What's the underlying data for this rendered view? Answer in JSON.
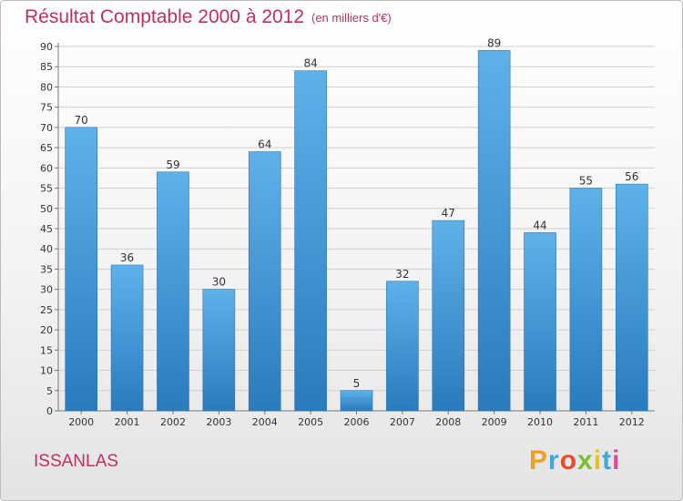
{
  "chart_data": {
    "type": "bar",
    "title": "Résultat Comptable 2000 à 2012",
    "subtitle": "(en milliers d'€)",
    "categories": [
      "2000",
      "2001",
      "2002",
      "2003",
      "2004",
      "2005",
      "2006",
      "2007",
      "2008",
      "2009",
      "2010",
      "2011",
      "2012"
    ],
    "values": [
      70,
      36,
      59,
      30,
      64,
      84,
      5,
      32,
      47,
      89,
      44,
      55,
      56
    ],
    "ylim": [
      0,
      90
    ],
    "yticks": [
      0,
      5,
      10,
      15,
      20,
      25,
      30,
      35,
      40,
      45,
      50,
      55,
      60,
      65,
      70,
      75,
      80,
      85,
      90
    ],
    "grid": true,
    "xlabel": "",
    "ylabel": ""
  },
  "commune": "ISSANLAS",
  "brand": "Proxiti",
  "colors": {
    "title": "#c0305a",
    "bar_top": "#5fb1ea",
    "bar_bottom": "#2a7bbd",
    "grid": "#d0d0d0"
  }
}
